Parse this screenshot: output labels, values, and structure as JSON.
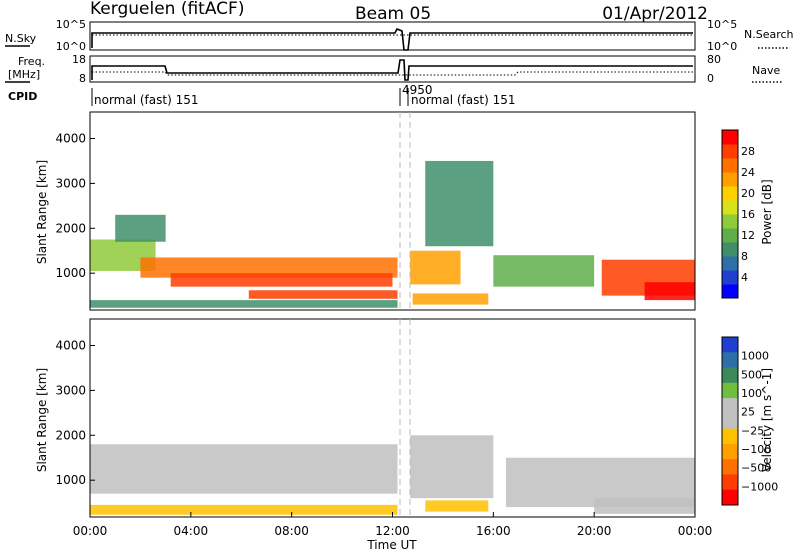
{
  "header": {
    "station": "Kerguelen (fitACF)",
    "beam": "Beam 05",
    "date": "01/Apr/2012"
  },
  "top_panels": {
    "nsky_label": "N.Sky",
    "nsearch_label": "N.Search",
    "nsky_ticks": [
      "10^5",
      "10^0"
    ],
    "nsearch_ticks": [
      "10^5",
      "10^0"
    ],
    "freq_label": "Freq.",
    "freq_unit": "[MHz]",
    "freq_ticks": [
      "18",
      "8"
    ],
    "nave_label": "Nave",
    "nave_ticks": [
      "80",
      "0"
    ],
    "cpid_label": "CPID",
    "cpid_segments": [
      "normal (fast) 151",
      "4950",
      "normal (fast) 151"
    ]
  },
  "chart_data": [
    {
      "type": "heatmap",
      "title": "",
      "ylabel": "Slant Range [km]",
      "xlabel": "",
      "yticks": [
        "1000",
        "2000",
        "3000",
        "4000"
      ],
      "ylim": [
        180,
        4590
      ],
      "xlim_hours": [
        0,
        24
      ],
      "colorbar_label": "Power [dB]",
      "colorbar_ticks": [
        "4",
        "8",
        "12",
        "16",
        "20",
        "24",
        "28"
      ],
      "colorbar_colors": [
        "#0000ff",
        "#1f3fd0",
        "#2e6fa8",
        "#3e8f6a",
        "#5fae4a",
        "#8fca3a",
        "#d7e21a",
        "#ffd000",
        "#ffa000",
        "#ff7000",
        "#ff3d00",
        "#ff0000"
      ],
      "colorbar_range": [
        0,
        30
      ],
      "regions": [
        {
          "t0": 0.0,
          "t1": 2.6,
          "r0": 1050,
          "r1": 1750,
          "v": 13
        },
        {
          "t0": 2.0,
          "t1": 12.2,
          "r0": 900,
          "r1": 1350,
          "v": 23
        },
        {
          "t0": 3.2,
          "t1": 12.0,
          "r0": 700,
          "r1": 1000,
          "v": 27
        },
        {
          "t0": 6.3,
          "t1": 12.2,
          "r0": 430,
          "r1": 620,
          "v": 27
        },
        {
          "t0": 0.0,
          "t1": 12.2,
          "r0": 230,
          "r1": 400,
          "v": 9
        },
        {
          "t0": 1.0,
          "t1": 3.0,
          "r0": 1700,
          "r1": 2300,
          "v": 8
        },
        {
          "t0": 12.7,
          "t1": 14.7,
          "r0": 750,
          "r1": 1500,
          "v": 22
        },
        {
          "t0": 12.8,
          "t1": 15.8,
          "r0": 300,
          "r1": 550,
          "v": 20
        },
        {
          "t0": 13.3,
          "t1": 16.0,
          "r0": 1600,
          "r1": 3500,
          "v": 8
        },
        {
          "t0": 16.0,
          "t1": 20.0,
          "r0": 700,
          "r1": 1400,
          "v": 11
        },
        {
          "t0": 20.3,
          "t1": 24.0,
          "r0": 500,
          "r1": 1300,
          "v": 26
        },
        {
          "t0": 22.0,
          "t1": 24.0,
          "r0": 400,
          "r1": 800,
          "v": 28
        }
      ]
    },
    {
      "type": "heatmap",
      "title": "",
      "ylabel": "Slant Range [km]",
      "xlabel": "Time UT",
      "xticks": [
        "00:00",
        "04:00",
        "08:00",
        "12:00",
        "16:00",
        "20:00",
        "00:00"
      ],
      "yticks": [
        "1000",
        "2000",
        "3000",
        "4000"
      ],
      "ylim": [
        180,
        4590
      ],
      "xlim_hours": [
        0,
        24
      ],
      "colorbar_label": "Velocity [m s^-1]",
      "colorbar_ticks": [
        "1000",
        "500",
        "100",
        "25",
        "−25",
        "−100",
        "−500",
        "−1000"
      ],
      "colorbar_colors": [
        "#1f3fd0",
        "#2e6fa8",
        "#3a8a5a",
        "#6fbf3f",
        "#c0c0c0",
        "#c0c0c0",
        "#ffc000",
        "#ffa000",
        "#ff7000",
        "#ff3d00",
        "#ff0000"
      ],
      "colorbar_range": [
        -1200,
        1200
      ],
      "regions": [
        {
          "t0": 0.0,
          "t1": 12.2,
          "r0": 700,
          "r1": 1800,
          "v": 0
        },
        {
          "t0": 0.0,
          "t1": 12.2,
          "r0": 230,
          "r1": 450,
          "v": -200
        },
        {
          "t0": 12.7,
          "t1": 16.0,
          "r0": 600,
          "r1": 2000,
          "v": 0
        },
        {
          "t0": 13.3,
          "t1": 15.8,
          "r0": 300,
          "r1": 550,
          "v": -300
        },
        {
          "t0": 16.5,
          "t1": 24.0,
          "r0": 400,
          "r1": 1500,
          "v": 0
        },
        {
          "t0": 20.0,
          "t1": 24.0,
          "r0": 250,
          "r1": 600,
          "v": 100
        }
      ]
    }
  ]
}
